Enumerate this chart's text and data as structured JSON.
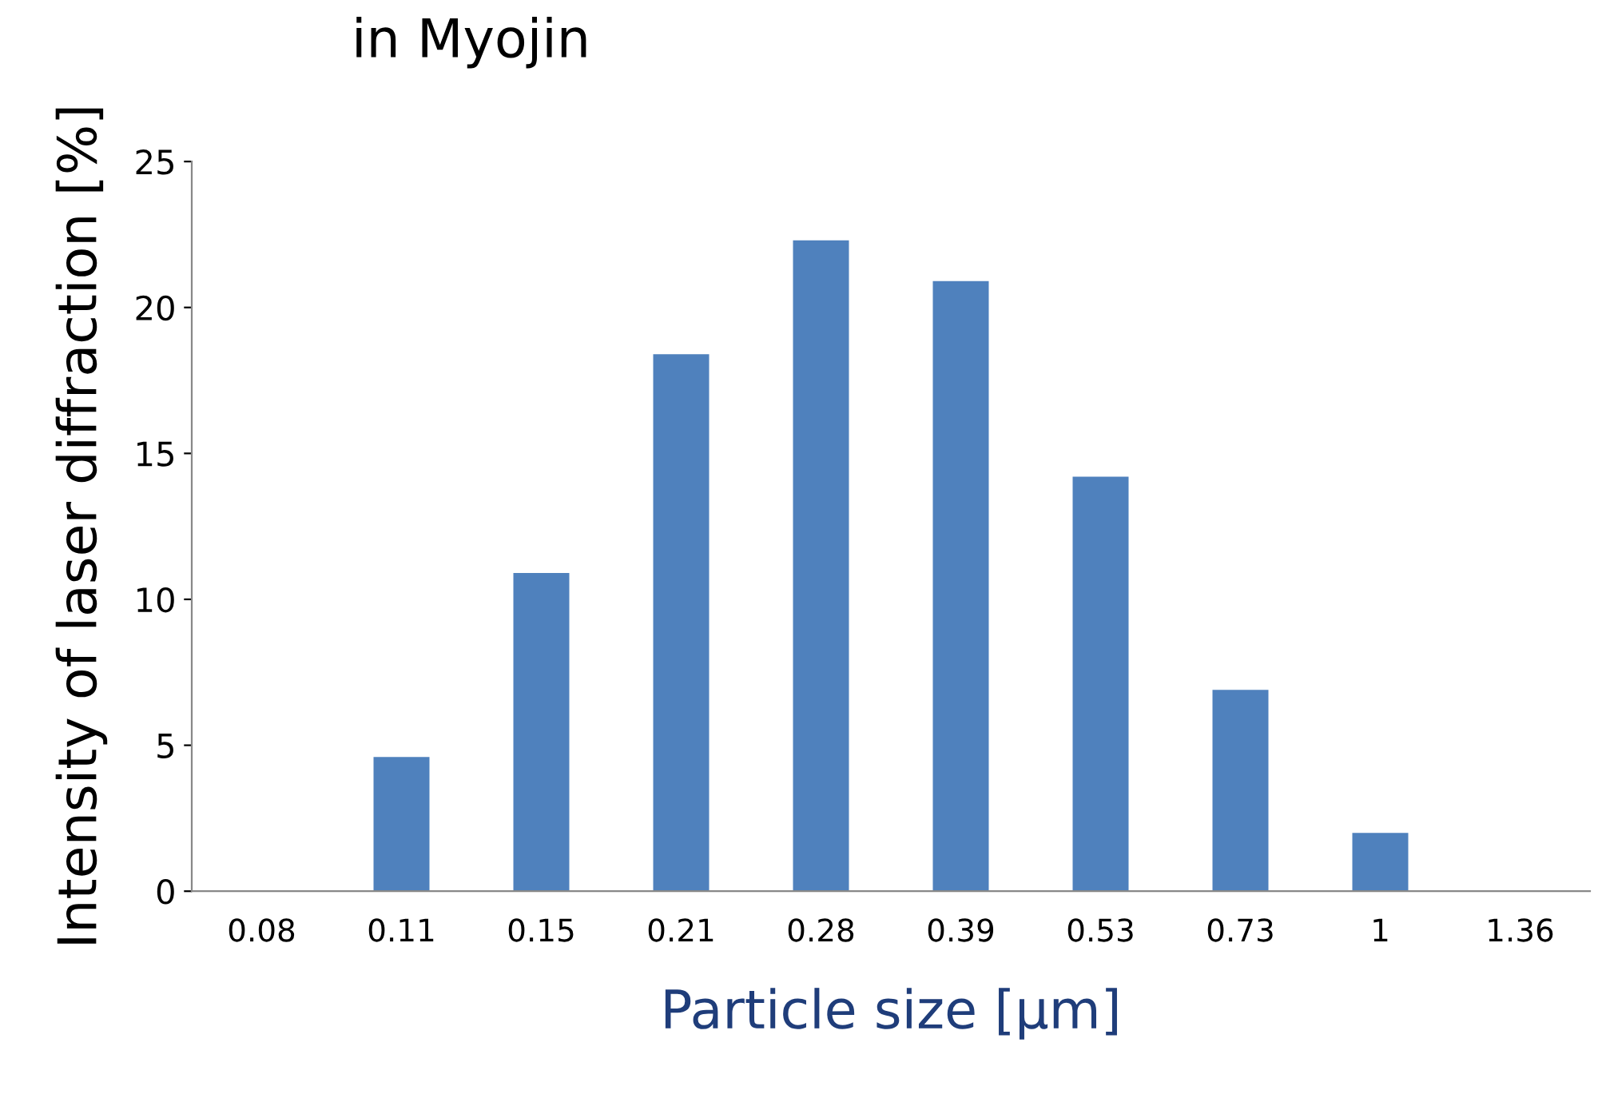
{
  "chart_data": {
    "type": "bar",
    "title": "in Myojin",
    "xlabel": "Particle size [μm]",
    "ylabel": "Intensity of laser diffraction [%]",
    "categories": [
      "0.08",
      "0.11",
      "0.15",
      "0.21",
      "0.28",
      "0.39",
      "0.53",
      "0.73",
      "1",
      "1.36"
    ],
    "values": [
      0,
      4.6,
      10.9,
      18.4,
      22.3,
      20.9,
      14.2,
      6.9,
      2.0,
      0
    ],
    "color": "#4f81bd",
    "ylim": [
      0,
      25
    ],
    "yticks": [
      0,
      5,
      10,
      15,
      20,
      25
    ],
    "grid": false,
    "legend": false
  }
}
